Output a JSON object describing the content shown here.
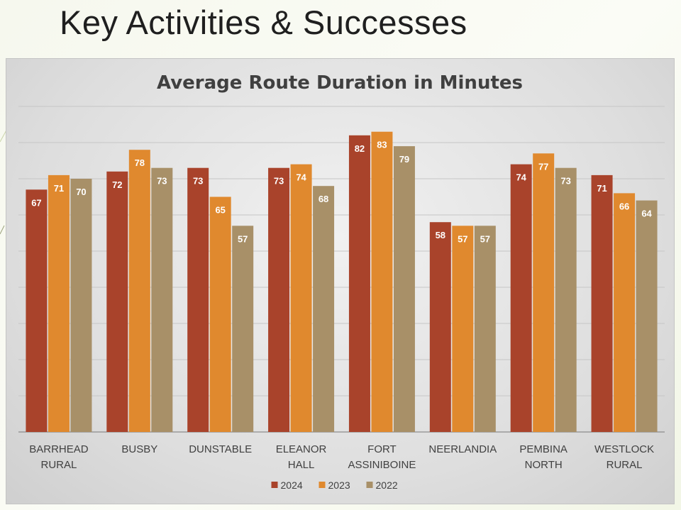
{
  "slide": {
    "title": "Key Activities & Successes"
  },
  "colors": {
    "2024": "#a9432b",
    "2023": "#e0892e",
    "2022": "#a89068",
    "grid": "#c6c6c6",
    "axis": "#8c8c8c"
  },
  "chart_data": {
    "type": "bar",
    "title": "Average Route Duration in Minutes",
    "xlabel": "",
    "ylabel": "",
    "ylim": [
      0,
      90
    ],
    "grid": true,
    "legend_position": "bottom",
    "categories": [
      [
        "BARRHEAD",
        "RURAL"
      ],
      [
        "BUSBY"
      ],
      [
        "DUNSTABLE"
      ],
      [
        "ELEANOR",
        "HALL"
      ],
      [
        "FORT",
        "ASSINIBOINE"
      ],
      [
        "NEERLANDIA"
      ],
      [
        "PEMBINA",
        "NORTH"
      ],
      [
        "WESTLOCK",
        "RURAL"
      ]
    ],
    "series": [
      {
        "name": "2024",
        "values": [
          67,
          72,
          73,
          73,
          82,
          58,
          74,
          71
        ]
      },
      {
        "name": "2023",
        "values": [
          71,
          78,
          65,
          74,
          83,
          57,
          77,
          66
        ]
      },
      {
        "name": "2022",
        "values": [
          70,
          73,
          57,
          68,
          79,
          57,
          73,
          64
        ]
      }
    ]
  }
}
